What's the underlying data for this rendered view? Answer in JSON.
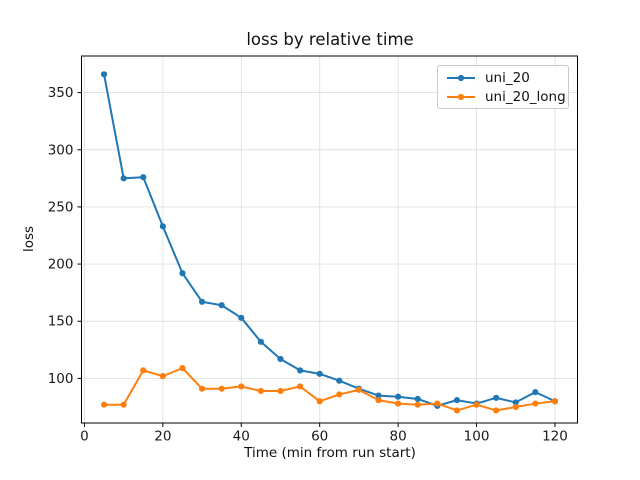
{
  "figure": {
    "background": "#ffffff"
  },
  "chart_data": {
    "type": "line",
    "title": "loss by relative time",
    "xlabel": "Time (min from run start)",
    "ylabel": "loss",
    "x": [
      5,
      10,
      15,
      20,
      25,
      30,
      35,
      40,
      45,
      50,
      55,
      60,
      65,
      70,
      75,
      80,
      85,
      90,
      95,
      100,
      105,
      110,
      115,
      120
    ],
    "series": [
      {
        "name": "uni_20",
        "color": "#1f77b4",
        "marker": "circle",
        "values": [
          366,
          275,
          276,
          233,
          192,
          167,
          164,
          153,
          132,
          117,
          107,
          104,
          98,
          91,
          85,
          84,
          82,
          76,
          81,
          78,
          83,
          79,
          88,
          80
        ]
      },
      {
        "name": "uni_20_long",
        "color": "#ff7f0e",
        "marker": "circle",
        "values": [
          77,
          77,
          107,
          102,
          109,
          91,
          91,
          93,
          89,
          89,
          93,
          80,
          86,
          90,
          81,
          78,
          77,
          78,
          72,
          77,
          72,
          75,
          78,
          80
        ]
      }
    ],
    "xticks": [
      0,
      20,
      40,
      60,
      80,
      100,
      120
    ],
    "yticks": [
      100,
      150,
      200,
      250,
      300,
      350
    ],
    "xlim": [
      -0.75,
      125.75
    ],
    "ylim": [
      61,
      382
    ],
    "grid": true,
    "grid_color": "#e0e0e0",
    "axis_color": "#000000",
    "legend": {
      "position": "upper right",
      "entries": [
        "uni_20",
        "uni_20_long"
      ]
    }
  }
}
